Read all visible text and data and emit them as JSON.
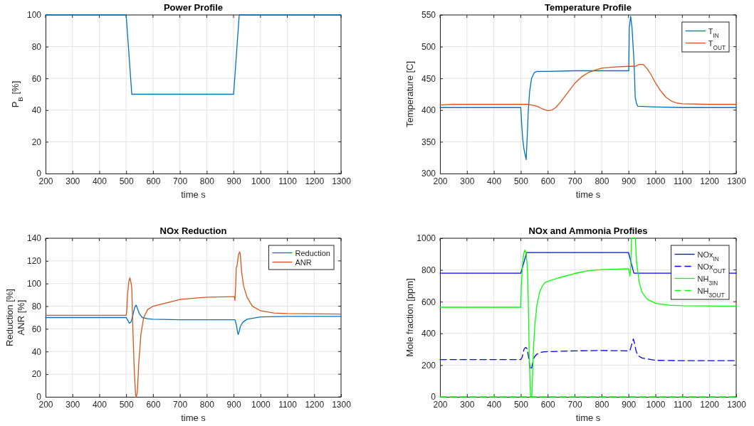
{
  "chart_data": [
    {
      "type": "line",
      "title": "Power Profile",
      "xlabel": "time s",
      "ylabel": "P$_{B}$ [%]",
      "xlim": [
        200,
        1300
      ],
      "xticks": [
        200,
        300,
        400,
        500,
        600,
        700,
        800,
        900,
        1000,
        1100,
        1200,
        1300
      ],
      "ylim": [
        0,
        100
      ],
      "yticks": [
        0,
        20,
        40,
        60,
        80,
        100
      ],
      "grid": true,
      "legend": false,
      "series": [
        {
          "color": "#0072bd",
          "x": [
            200,
            500,
            521,
            900,
            921,
            1300
          ],
          "values": [
            100,
            100,
            50,
            50,
            100,
            100
          ]
        }
      ]
    },
    {
      "type": "line",
      "title": "Temperature Profile",
      "xlabel": "time s",
      "ylabel": "Temperature [C]",
      "xlim": [
        200,
        1300
      ],
      "xticks": [
        200,
        300,
        400,
        500,
        600,
        700,
        800,
        900,
        1000,
        1100,
        1200,
        1300
      ],
      "ylim": [
        300,
        550
      ],
      "yticks": [
        300,
        350,
        400,
        450,
        500,
        550
      ],
      "grid": true,
      "legend": "top right",
      "series": [
        {
          "name": "T$_{IN}$",
          "color": "#0072bd",
          "x": [
            200,
            500,
            503,
            507,
            512,
            520,
            524,
            528,
            533,
            540,
            550,
            560,
            600,
            700,
            800,
            900,
            901,
            903,
            908,
            913,
            920,
            922,
            925,
            930,
            935,
            1000,
            1100,
            1300
          ],
          "values": [
            404,
            404,
            380,
            355,
            338,
            322,
            360,
            400,
            430,
            450,
            459,
            461,
            461,
            462,
            462,
            462,
            462,
            530,
            548,
            530,
            480,
            460,
            420,
            410,
            406,
            405,
            404,
            404
          ]
        },
        {
          "name": "T$_{OUT}$",
          "color": "#d95319",
          "x": [
            200,
            250,
            500,
            530,
            560,
            580,
            600,
            615,
            630,
            650,
            675,
            700,
            725,
            750,
            775,
            800,
            850,
            900,
            925,
            940,
            955,
            970,
            985,
            1000,
            1020,
            1040,
            1060,
            1080,
            1100,
            1200,
            1300
          ],
          "values": [
            408,
            409,
            409,
            409,
            406,
            402,
            399,
            400,
            404,
            414,
            428,
            442,
            452,
            459,
            463,
            466,
            468,
            469,
            469,
            472,
            472,
            465,
            455,
            443,
            430,
            420,
            414,
            411,
            410,
            409,
            409
          ]
        }
      ]
    },
    {
      "type": "line",
      "title": "NOx Reduction",
      "xlabel": "time s",
      "ylabel": "Reduction [%]\nANR [%]",
      "xlim": [
        200,
        1300
      ],
      "xticks": [
        200,
        300,
        400,
        500,
        600,
        700,
        800,
        900,
        1000,
        1100,
        1200,
        1300
      ],
      "ylim": [
        0,
        140
      ],
      "yticks": [
        0,
        20,
        40,
        60,
        80,
        100,
        120,
        140
      ],
      "grid": true,
      "legend": "top right",
      "series": [
        {
          "name": "Reduction",
          "color": "#0072bd",
          "x": [
            200,
            500,
            505,
            512,
            518,
            525,
            532,
            537,
            542,
            550,
            560,
            580,
            600,
            700,
            800,
            900,
            905,
            910,
            915,
            917,
            920,
            925,
            935,
            950,
            1000,
            1100,
            1300
          ],
          "values": [
            70,
            70,
            68,
            65,
            66,
            72,
            79,
            81,
            78,
            73,
            70,
            69,
            68.5,
            68,
            68,
            68,
            68,
            64,
            57,
            55,
            57,
            62,
            66,
            68.5,
            70.5,
            71,
            71
          ]
        },
        {
          "name": "ANR",
          "color": "#d95319",
          "x": [
            200,
            500,
            502,
            505,
            510,
            514,
            518,
            521,
            525,
            530,
            535,
            538,
            542,
            547,
            555,
            565,
            580,
            600,
            650,
            700,
            750,
            800,
            900,
            903,
            905,
            908,
            910,
            913,
            918,
            922,
            925,
            930,
            937,
            950,
            970,
            1000,
            1050,
            1100,
            1300
          ],
          "values": [
            72,
            72,
            75,
            90,
            102,
            105,
            101,
            96,
            60,
            25,
            2,
            0,
            5,
            30,
            55,
            70,
            77,
            80,
            83,
            86,
            87,
            88,
            88.5,
            88.5,
            85,
            100,
            114,
            116,
            125,
            128,
            126,
            110,
            98,
            88,
            80,
            76,
            74,
            73.5,
            73
          ]
        }
      ]
    },
    {
      "type": "line",
      "title": "NOx and Ammonia Profiles",
      "xlabel": "time s",
      "ylabel": "Mole fraction [ppm]",
      "xlim": [
        200,
        1300
      ],
      "xticks": [
        200,
        300,
        400,
        500,
        600,
        700,
        800,
        900,
        1000,
        1100,
        1200,
        1300
      ],
      "ylim": [
        0,
        1000
      ],
      "yticks": [
        0,
        200,
        400,
        600,
        800,
        1000
      ],
      "grid": true,
      "legend": "top right",
      "series": [
        {
          "name": "NOx$_{IN}$",
          "color": "#0000ff",
          "line_style": "solid",
          "x": [
            200,
            500,
            522,
            900,
            920,
            1300
          ],
          "values": [
            780,
            780,
            910,
            910,
            780,
            780
          ]
        },
        {
          "name": "NOx$_{OUT}$",
          "color": "#0000ff",
          "line_style": "dashed",
          "x": [
            200,
            500,
            505,
            512,
            518,
            523,
            527,
            533,
            537,
            540,
            545,
            550,
            560,
            580,
            600,
            700,
            800,
            900,
            905,
            912,
            918,
            922,
            928,
            935,
            950,
            1000,
            1100,
            1300
          ],
          "values": [
            235,
            235,
            250,
            300,
            312,
            305,
            270,
            200,
            170,
            180,
            220,
            250,
            270,
            283,
            285,
            290,
            292,
            290,
            290,
            330,
            365,
            340,
            290,
            260,
            245,
            230,
            228,
            228
          ]
        },
        {
          "name": "NH$_{3IN}$",
          "color": "#00ff00",
          "line_style": "solid",
          "x": [
            200,
            500,
            502,
            507,
            512,
            515,
            520,
            525,
            528,
            531,
            535,
            537,
            541,
            543,
            547,
            552,
            560,
            570,
            580,
            590,
            600,
            640,
            700,
            750,
            800,
            900,
            903,
            905,
            908,
            911,
            925,
            930,
            940,
            950,
            970,
            1000,
            1050,
            1100,
            1300
          ],
          "values": [
            565,
            565,
            700,
            850,
            910,
            925,
            910,
            800,
            600,
            300,
            50,
            0,
            0,
            100,
            300,
            450,
            580,
            660,
            700,
            720,
            728,
            750,
            778,
            795,
            802,
            808,
            790,
            762,
            800,
            1000,
            1000,
            850,
            720,
            660,
            615,
            590,
            578,
            575,
            572
          ]
        },
        {
          "name": "NH$_{3OUT}$",
          "color": "#00ff00",
          "line_style": "dashed",
          "x": [
            200,
            1300
          ],
          "values": [
            0,
            0
          ]
        }
      ]
    }
  ]
}
